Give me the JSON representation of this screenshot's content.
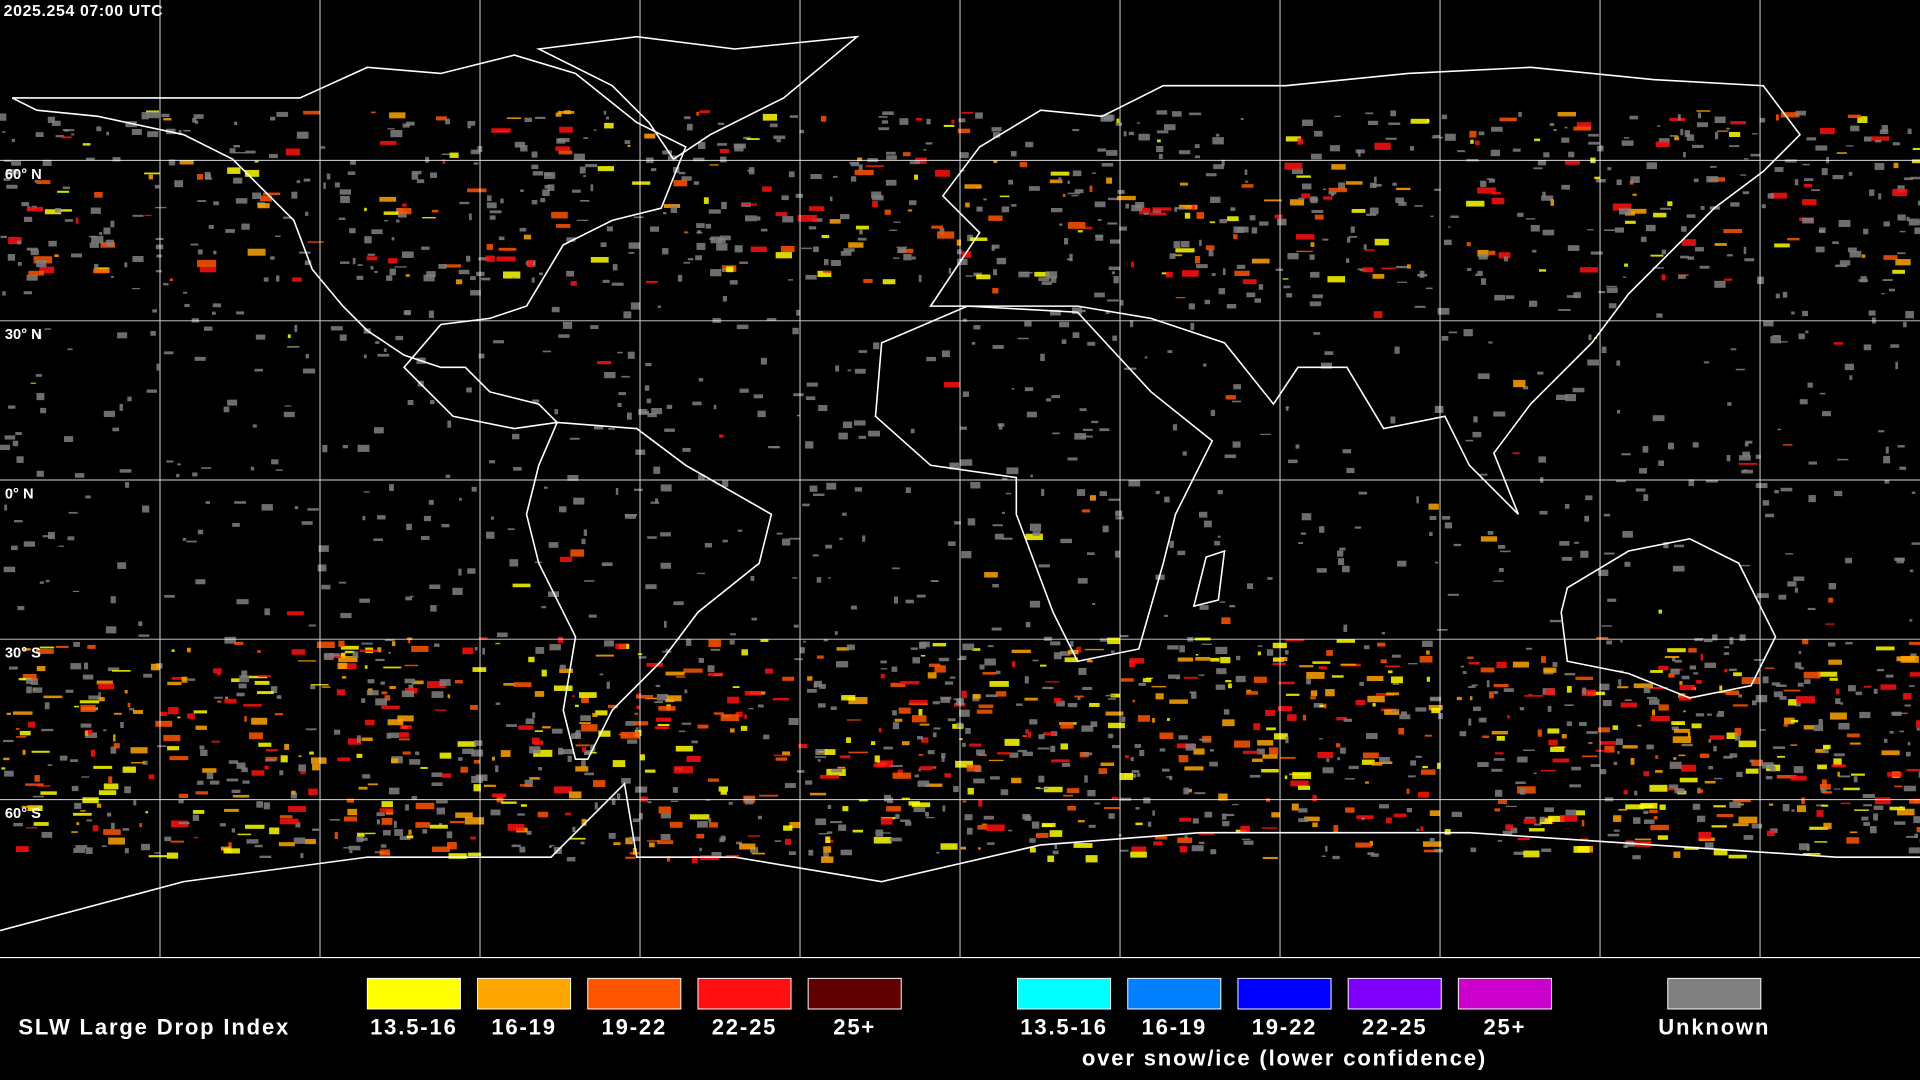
{
  "header": {
    "timestamp": "2025.254 07:00 UTC"
  },
  "map": {
    "latitude_labels": [
      "60° N",
      "30° N",
      "0° N",
      "30° S",
      "60° S"
    ]
  },
  "legend": {
    "title": "SLW Large Drop Index",
    "groups": [
      {
        "items": [
          {
            "label": "13.5-16",
            "color": "#ffff00"
          },
          {
            "label": "16-19",
            "color": "#ffa500"
          },
          {
            "label": "19-22",
            "color": "#ff5500"
          },
          {
            "label": "22-25",
            "color": "#ff1010"
          },
          {
            "label": "25+",
            "color": "#600000"
          }
        ]
      },
      {
        "items": [
          {
            "label": "13.5-16",
            "color": "#00ffff"
          },
          {
            "label": "16-19",
            "color": "#0080ff"
          },
          {
            "label": "19-22",
            "color": "#0000ff"
          },
          {
            "label": "22-25",
            "color": "#8000ff"
          },
          {
            "label": "25+",
            "color": "#cc00cc"
          }
        ],
        "caption": "over snow/ice (lower confidence)"
      }
    ],
    "unknown": {
      "label": "Unknown",
      "color": "#808080"
    }
  }
}
